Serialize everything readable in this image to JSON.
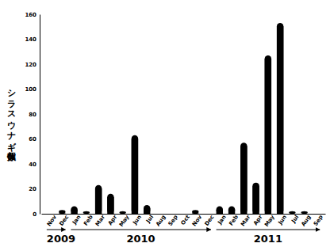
{
  "chart_data": {
    "type": "bar",
    "y_label": "シラスウナギ個体数",
    "categories": [
      "Nov",
      "Dec",
      "Jan",
      "Feb",
      "Mar",
      "Apr",
      "May",
      "Jun",
      "Jul",
      "Aug",
      "Sep",
      "Oct",
      "Nov",
      "Dec",
      "Jan",
      "Feb",
      "Mar",
      "Apr",
      "May",
      "Jun",
      "Jul",
      "Aug",
      "Sep"
    ],
    "values": [
      0,
      3,
      6,
      2,
      23,
      16,
      2,
      63,
      7,
      0,
      0,
      0,
      3,
      0,
      6,
      6,
      57,
      25,
      127,
      153,
      2,
      2,
      0
    ],
    "groups": [
      {
        "label": "2009",
        "count": 2
      },
      {
        "label": "2010",
        "count": 12
      },
      {
        "label": "2011",
        "count": 9
      }
    ],
    "color": "#000000",
    "ylim": [
      0,
      160
    ],
    "yticks": [
      0,
      20,
      40,
      60,
      80,
      100,
      120,
      140,
      160
    ],
    "grid": false
  }
}
